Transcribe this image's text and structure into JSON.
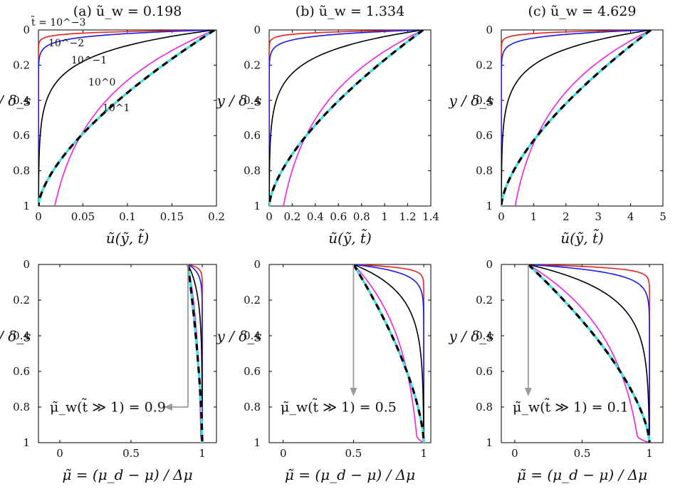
{
  "panel_titles": [
    "(a) ũ_w = 0.198",
    "(b) ũ_w = 1.334",
    "(c) ũ_w = 4.629"
  ],
  "y_axis_label": "y / δ_s",
  "top_x_label": "ũ(ỹ, t̃)",
  "bottom_x_label": "μ̃ = (μ_d − μ) / Δμ",
  "curve_labels": {
    "t1e-3": "t̃ = 10^−3",
    "t1e-2": "10^−2",
    "t1e-1": "10^−1",
    "t1e0": "10^0",
    "t1e1": "10^1"
  },
  "mu_w_notes": [
    "μ̃_w(t̃ ≫ 1) = 0.9",
    "μ̃_w(t̃ ≫ 1) = 0.5",
    "μ̃_w(t̃ ≫ 1) = 0.1"
  ],
  "series_colors": {
    "t1e-3": "#e8231e",
    "t1e-2": "#1a1aee",
    "t1e-1": "#000000",
    "t1e0": "#f020e8",
    "steady_analytical": "#3ee0e0",
    "steady_numerical": "#000000"
  },
  "chart_data": [
    {
      "type": "line",
      "panel": "a-top",
      "title": "(a) ũ_w = 0.198",
      "xlabel": "ũ(ỹ, t̃)",
      "ylabel": "y / δ_s",
      "xlim": [
        0,
        0.2
      ],
      "ylim": [
        0,
        1
      ],
      "y_inverted": true,
      "xticks": [
        0,
        0.05,
        0.1,
        0.15,
        0.2
      ],
      "xtick_labels": [
        "0",
        "0.05",
        "0.1",
        "0.15",
        "0.2"
      ],
      "yticks": [
        0,
        0.2,
        0.4,
        0.6,
        0.8,
        1
      ],
      "ytick_labels": [
        "0",
        "0.2",
        "0.4",
        "0.6",
        "0.8",
        "1"
      ],
      "u_w": 0.198
    },
    {
      "type": "line",
      "panel": "b-top",
      "title": "(b) ũ_w = 1.334",
      "xlabel": "ũ(ỹ, t̃)",
      "ylabel": "y / δ_s",
      "xlim": [
        0,
        1.4
      ],
      "ylim": [
        0,
        1
      ],
      "y_inverted": true,
      "xticks": [
        0,
        0.2,
        0.4,
        0.6,
        0.8,
        1,
        1.2,
        1.4
      ],
      "xtick_labels": [
        "0",
        "0.2",
        "0.4",
        "0.6",
        "0.8",
        "1",
        "1.2",
        "1.4"
      ],
      "yticks": [
        0,
        0.2,
        0.4,
        0.6,
        0.8,
        1
      ],
      "ytick_labels": [
        "0",
        "0.2",
        "0.4",
        "0.6",
        "0.8",
        "1"
      ],
      "u_w": 1.334
    },
    {
      "type": "line",
      "panel": "c-top",
      "title": "(c) ũ_w = 4.629",
      "xlabel": "ũ(ỹ, t̃)",
      "ylabel": "y / δ_s",
      "xlim": [
        0,
        5
      ],
      "ylim": [
        0,
        1
      ],
      "y_inverted": true,
      "xticks": [
        0,
        1,
        2,
        3,
        4,
        5
      ],
      "xtick_labels": [
        "0",
        "1",
        "2",
        "3",
        "4",
        "5"
      ],
      "yticks": [
        0,
        0.2,
        0.4,
        0.6,
        0.8,
        1
      ],
      "ytick_labels": [
        "0",
        "0.2",
        "0.4",
        "0.6",
        "0.8",
        "1"
      ],
      "u_w": 4.629
    },
    {
      "type": "line",
      "panel": "a-bottom",
      "xlabel": "μ̃ = (μ_d − μ) / Δμ",
      "ylabel": "y / δ_s",
      "xlim": [
        -0.15,
        1.1
      ],
      "ylim": [
        0,
        1
      ],
      "y_inverted": true,
      "xticks": [
        0,
        0.5,
        1
      ],
      "xtick_labels": [
        "0",
        "0.5",
        "1"
      ],
      "yticks": [
        0,
        0.2,
        0.4,
        0.6,
        0.8,
        1
      ],
      "ytick_labels": [
        "0",
        "0.2",
        "0.4",
        "0.6",
        "0.8",
        "1"
      ],
      "mu_w": 0.9
    },
    {
      "type": "line",
      "panel": "b-bottom",
      "xlabel": "μ̃ = (μ_d − μ) / Δμ",
      "ylabel": "y / δ_s",
      "xlim": [
        -0.1,
        1.05
      ],
      "ylim": [
        0,
        1
      ],
      "y_inverted": true,
      "xticks": [
        0,
        0.5,
        1
      ],
      "xtick_labels": [
        "0",
        "0.5",
        "1"
      ],
      "yticks": [
        0,
        0.2,
        0.4,
        0.6,
        0.8,
        1
      ],
      "ytick_labels": [
        "0",
        "0.2",
        "0.4",
        "0.6",
        "0.8",
        "1"
      ],
      "mu_w": 0.5
    },
    {
      "type": "line",
      "panel": "c-bottom",
      "xlabel": "μ̃ = (μ_d − μ) / Δμ",
      "ylabel": "y / δ_s",
      "xlim": [
        -0.1,
        1.1
      ],
      "ylim": [
        0,
        1
      ],
      "y_inverted": true,
      "xticks": [
        0,
        0.5,
        1
      ],
      "xtick_labels": [
        "0",
        "0.5",
        "1"
      ],
      "yticks": [
        0,
        0.2,
        0.4,
        0.6,
        0.8,
        1
      ],
      "ytick_labels": [
        "0",
        "0.2",
        "0.4",
        "0.6",
        "0.8",
        "1"
      ],
      "mu_w": 0.1
    }
  ]
}
